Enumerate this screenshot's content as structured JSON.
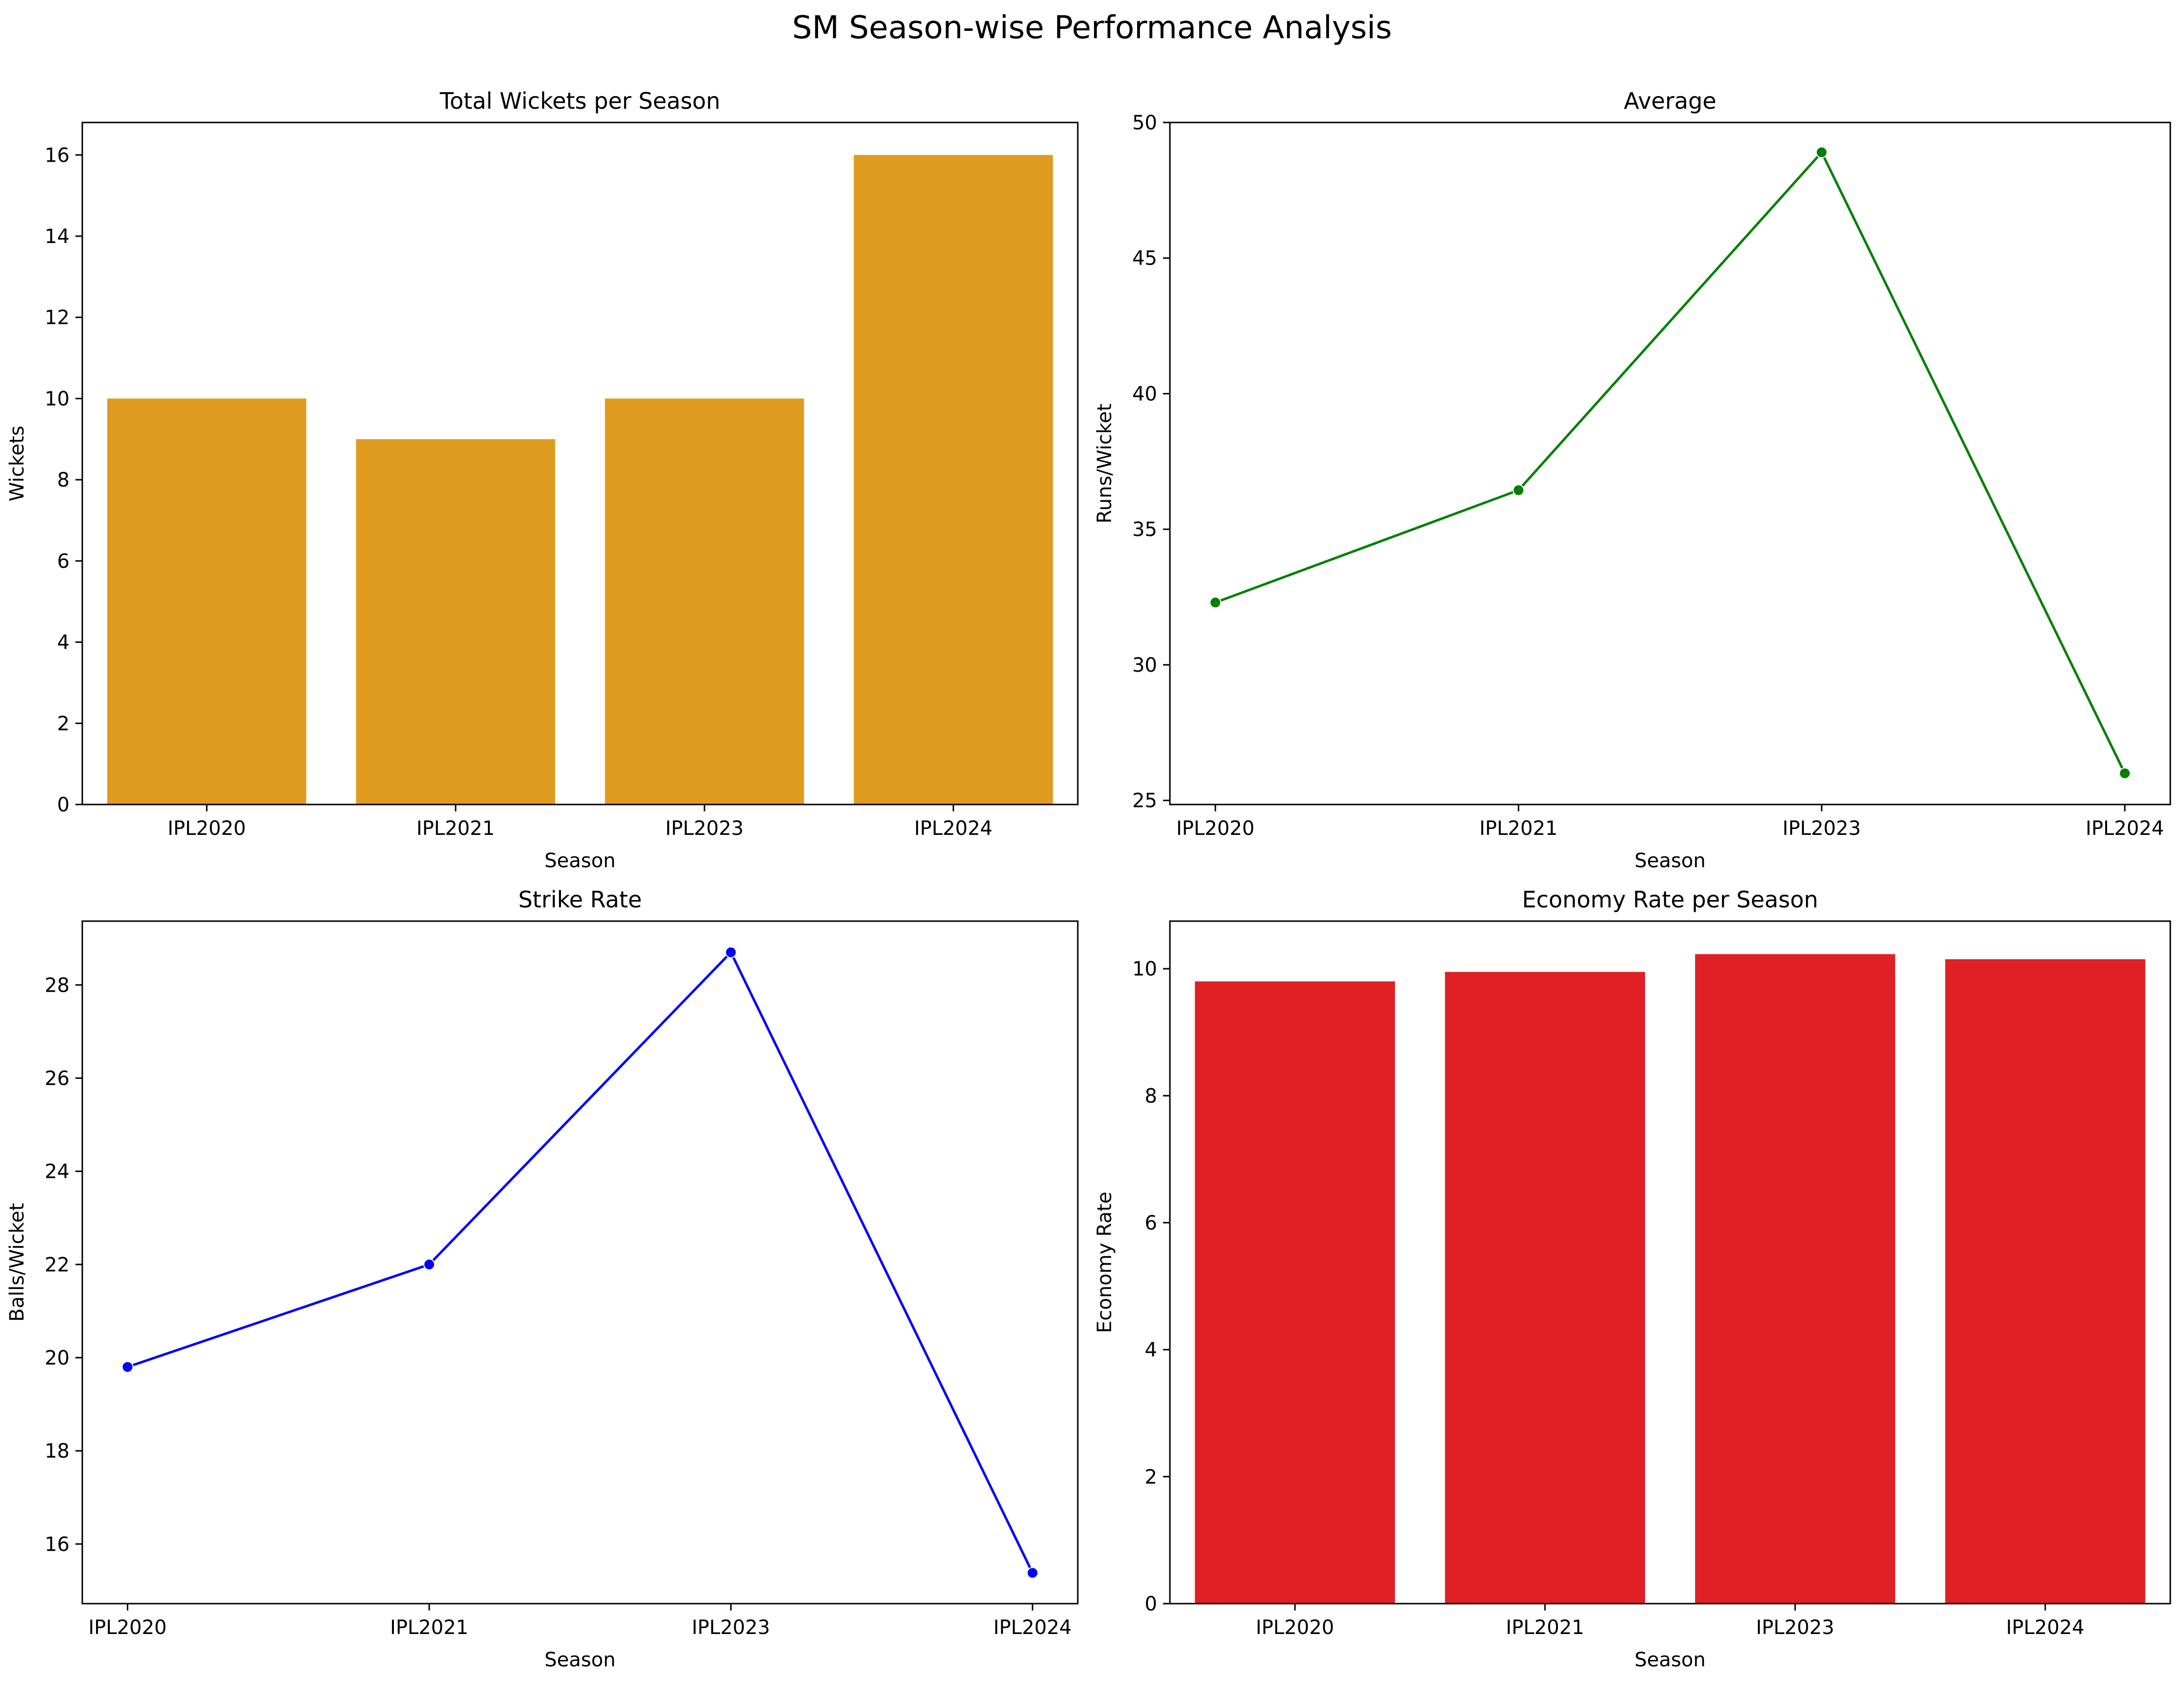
{
  "figure": {
    "title": "SM Season-wise Performance Analysis"
  },
  "colors": {
    "wickets_bar": "#E09C20",
    "average_line": "#008000",
    "strike_rate_line": "#0000FF",
    "economy_bar": "#DF2024",
    "axes": "#000000",
    "background": "#FFFFFF"
  },
  "chart_data": [
    {
      "type": "bar",
      "title": "Total Wickets per Season",
      "xlabel": "Season",
      "ylabel": "Wickets",
      "categories": [
        "IPL2020",
        "IPL2021",
        "IPL2023",
        "IPL2024"
      ],
      "values": [
        10,
        9,
        10,
        16
      ],
      "ylim": [
        0,
        16.8
      ],
      "yticks": [
        0,
        2,
        4,
        6,
        8,
        10,
        12,
        14,
        16
      ],
      "grid": false,
      "legend": "none"
    },
    {
      "type": "line",
      "title": "Average",
      "xlabel": "Season",
      "ylabel": "Runs/Wicket",
      "categories": [
        "IPL2020",
        "IPL2021",
        "IPL2023",
        "IPL2024"
      ],
      "values": [
        32.3,
        36.44,
        48.9,
        26.0
      ],
      "ylim": [
        24.85,
        50.0
      ],
      "yticks": [
        25,
        30,
        35,
        40,
        45,
        50
      ],
      "grid": false,
      "legend": "none"
    },
    {
      "type": "line",
      "title": "Strike Rate",
      "xlabel": "Season",
      "ylabel": "Balls/Wicket",
      "categories": [
        "IPL2020",
        "IPL2021",
        "IPL2023",
        "IPL2024"
      ],
      "values": [
        19.8,
        22.0,
        28.7,
        15.38
      ],
      "ylim": [
        14.72,
        29.37
      ],
      "yticks": [
        16,
        18,
        20,
        22,
        24,
        26,
        28
      ],
      "grid": false,
      "legend": "none"
    },
    {
      "type": "bar",
      "title": "Economy Rate per Season",
      "xlabel": "Season",
      "ylabel": "Economy Rate",
      "categories": [
        "IPL2020",
        "IPL2021",
        "IPL2023",
        "IPL2024"
      ],
      "values": [
        9.8,
        9.95,
        10.23,
        10.15
      ],
      "ylim": [
        0,
        10.75
      ],
      "yticks": [
        0,
        2,
        4,
        6,
        8,
        10
      ],
      "grid": false,
      "legend": "none"
    }
  ]
}
